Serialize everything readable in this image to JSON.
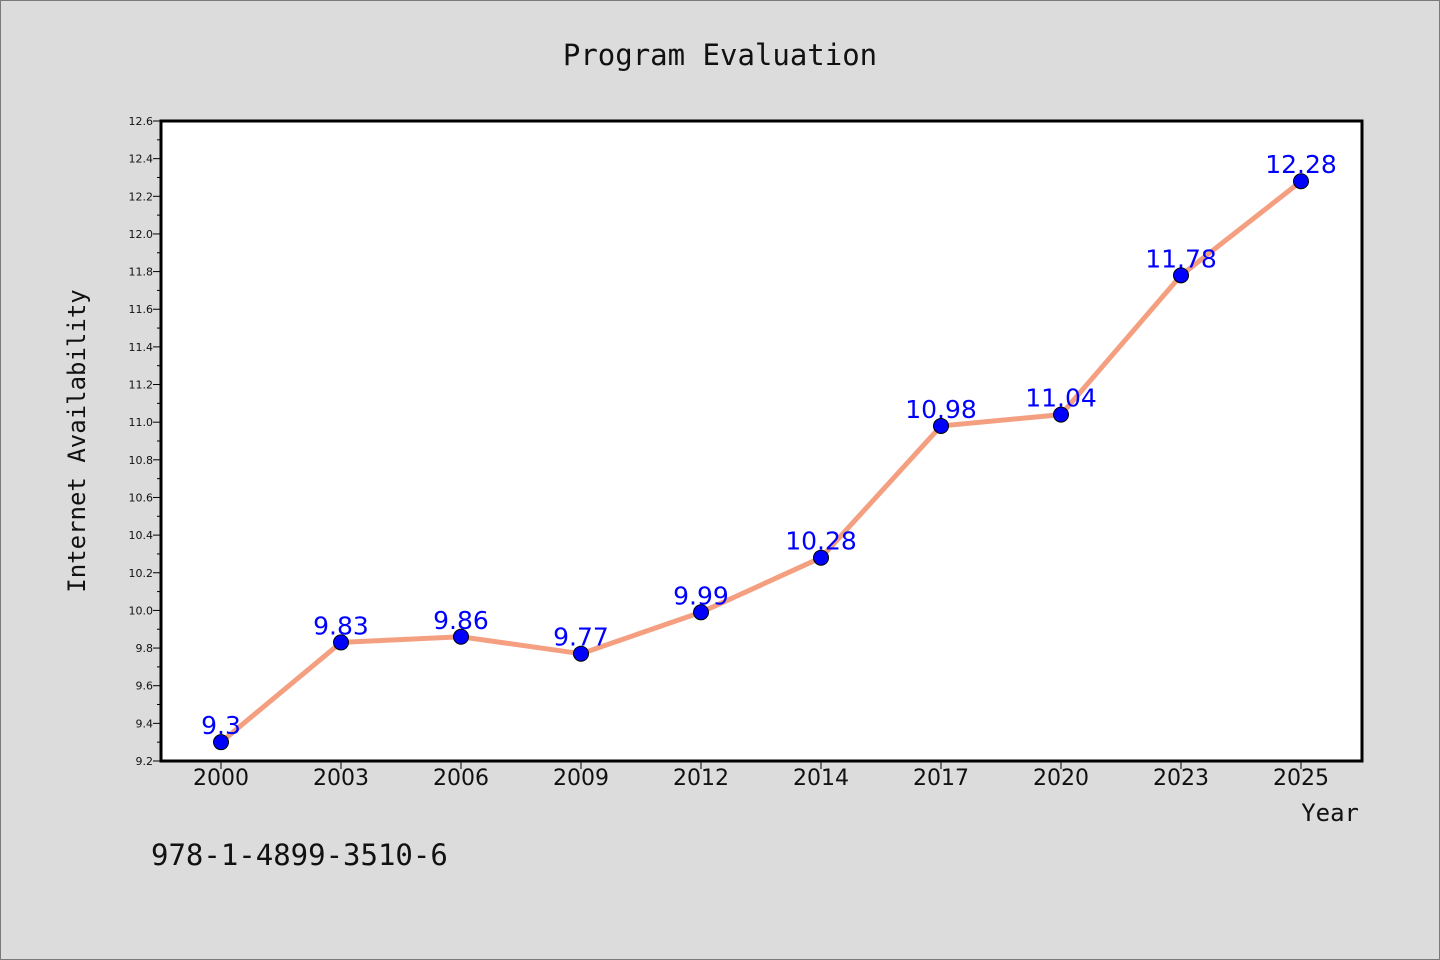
{
  "chart_data": {
    "type": "line",
    "title": "Program Evaluation",
    "xlabel": "Year",
    "ylabel": "Internet Availability",
    "categories": [
      "2000",
      "2003",
      "2006",
      "2009",
      "2012",
      "2014",
      "2017",
      "2020",
      "2023",
      "2025"
    ],
    "series": [
      {
        "values": [
          9.3,
          9.83,
          9.86,
          9.77,
          9.99,
          10.28,
          10.98,
          11.04,
          11.78,
          12.28
        ],
        "labels": [
          "9.3",
          "9.83",
          "9.86",
          "9.77",
          "9.99",
          "10.28",
          "10.98",
          "11.04",
          "11.78",
          "12.28"
        ]
      }
    ],
    "ylim": [
      9.2,
      12.6
    ],
    "yticks": [
      "9.2",
      "9.4",
      "9.6",
      "9.8",
      "10.0",
      "10.2",
      "10.4",
      "10.6",
      "10.8",
      "11.0",
      "11.2",
      "11.4",
      "11.6",
      "11.8",
      "12.0",
      "12.2",
      "12.4",
      "12.6"
    ],
    "grid": false,
    "legend": "none",
    "colors": {
      "line": "#f4a080",
      "marker": "#0000ff",
      "label": "#0000ff",
      "plot_background": "#ffffff",
      "page_background": "#dcdcdc"
    }
  },
  "footer": {
    "isbn": "978-1-4899-3510-6"
  }
}
